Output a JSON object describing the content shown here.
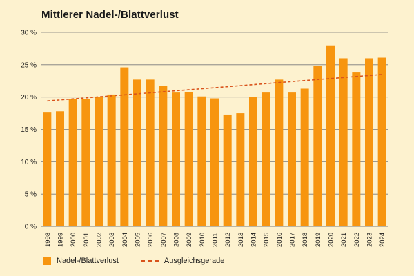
{
  "colors": {
    "bar": "#f7950f",
    "trend": "#d9531b",
    "grid": "#7a7a7a",
    "background": "#fdf2cf"
  },
  "chart_data": {
    "type": "bar",
    "title": "Mittlerer Nadel-/Blattverlust",
    "xlabel": "",
    "ylabel": "",
    "categories": [
      "1998",
      "1999",
      "2000",
      "2001",
      "2002",
      "2003",
      "2004",
      "2005",
      "2006",
      "2007",
      "2008",
      "2009",
      "2010",
      "2011",
      "2012",
      "2013",
      "2014",
      "2015",
      "2016",
      "2017",
      "2018",
      "2019",
      "2020",
      "2021",
      "2022",
      "2023",
      "2024"
    ],
    "series": [
      {
        "name": "Nadel-/Blattverlust",
        "values": [
          17.6,
          17.8,
          19.7,
          19.7,
          20.0,
          20.4,
          24.6,
          22.7,
          22.7,
          21.7,
          20.7,
          20.8,
          20.1,
          19.8,
          17.3,
          17.5,
          20.0,
          20.7,
          22.7,
          20.7,
          21.3,
          24.8,
          28.0,
          26.0,
          23.8,
          26.0,
          26.1
        ]
      }
    ],
    "trend": {
      "name": "Ausgleichsgerade",
      "start": 19.4,
      "end": 23.5
    },
    "yticks": [
      "0 %",
      "5 %",
      "10 %",
      "15 %",
      "20 %",
      "25 %",
      "30 %"
    ],
    "ylim": [
      0,
      30
    ],
    "grid": true,
    "legend": "bottom-left"
  }
}
